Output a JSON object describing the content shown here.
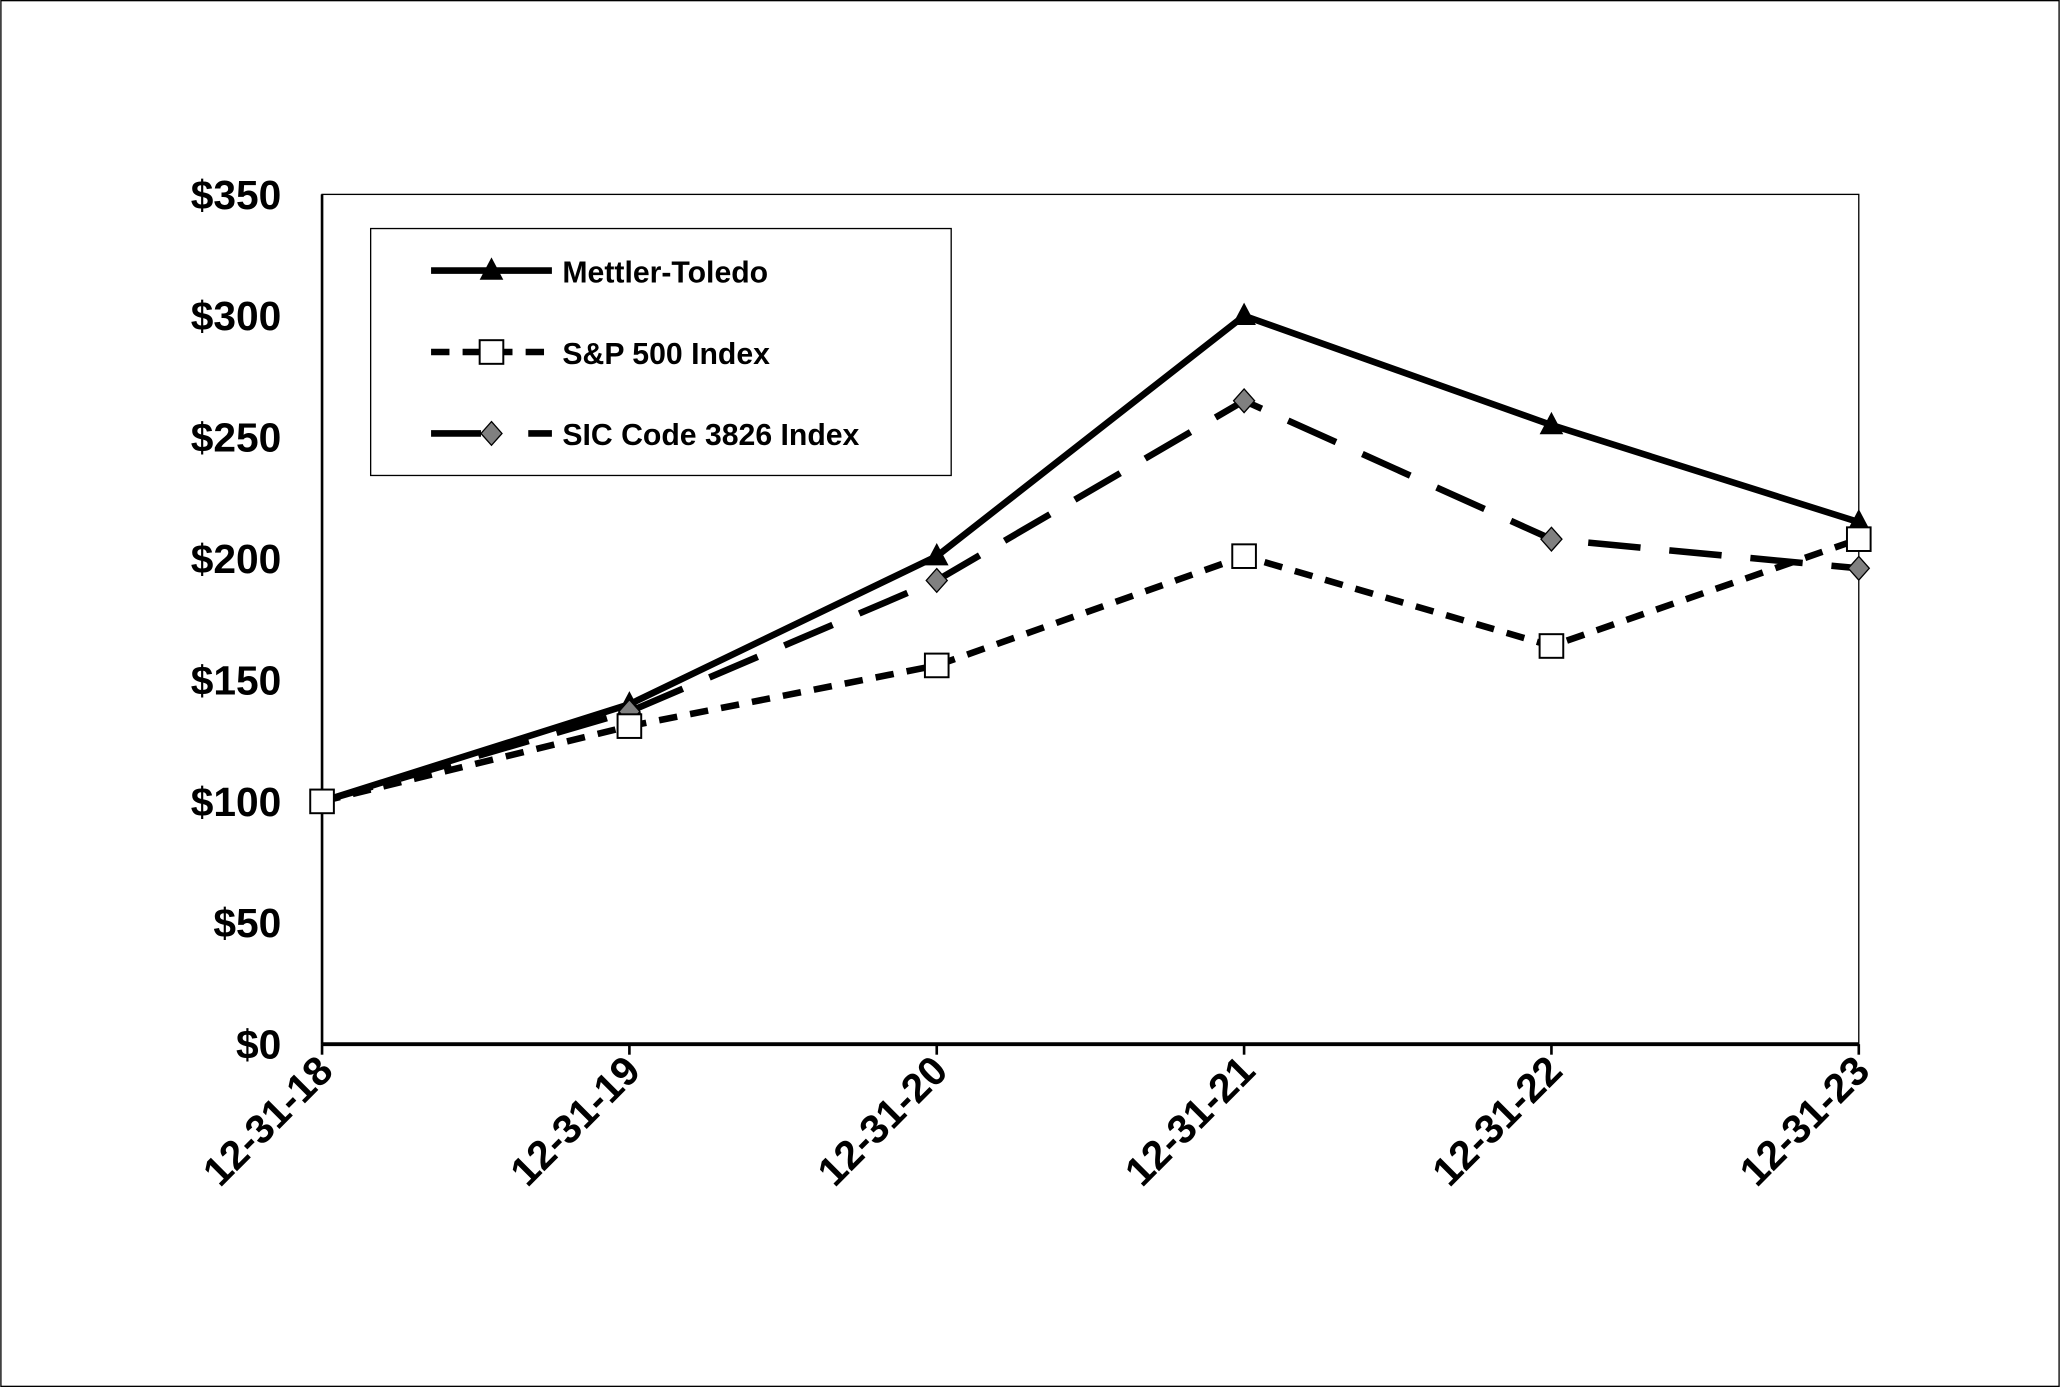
{
  "chart_data": {
    "type": "line",
    "title": "",
    "xlabel": "",
    "ylabel": "",
    "categories": [
      "12-31-18",
      "12-31-19",
      "12-31-20",
      "12-31-21",
      "12-31-22",
      "12-31-23"
    ],
    "ylim": [
      0,
      350
    ],
    "yticks": [
      0,
      50,
      100,
      150,
      200,
      250,
      300,
      350
    ],
    "ytick_labels": [
      "$0",
      "$50",
      "$100",
      "$150",
      "$200",
      "$250",
      "$300",
      "$350"
    ],
    "grid": false,
    "legend_position": "top-left",
    "series": [
      {
        "name": "Mettler-Toledo",
        "values": [
          100,
          140,
          201,
          300,
          255,
          215
        ],
        "style": "solid",
        "marker": "triangle",
        "color": "#000000"
      },
      {
        "name": "S&P 500 Index",
        "values": [
          100,
          131,
          156,
          201,
          164,
          208
        ],
        "style": "short-dash",
        "marker": "square",
        "color": "#000000",
        "marker_fill": "#ffffff"
      },
      {
        "name": "SIC Code 3826 Index",
        "values": [
          100,
          137,
          191,
          265,
          208,
          196
        ],
        "style": "long-dash",
        "marker": "diamond",
        "color": "#000000",
        "marker_fill": "#808080"
      }
    ]
  }
}
